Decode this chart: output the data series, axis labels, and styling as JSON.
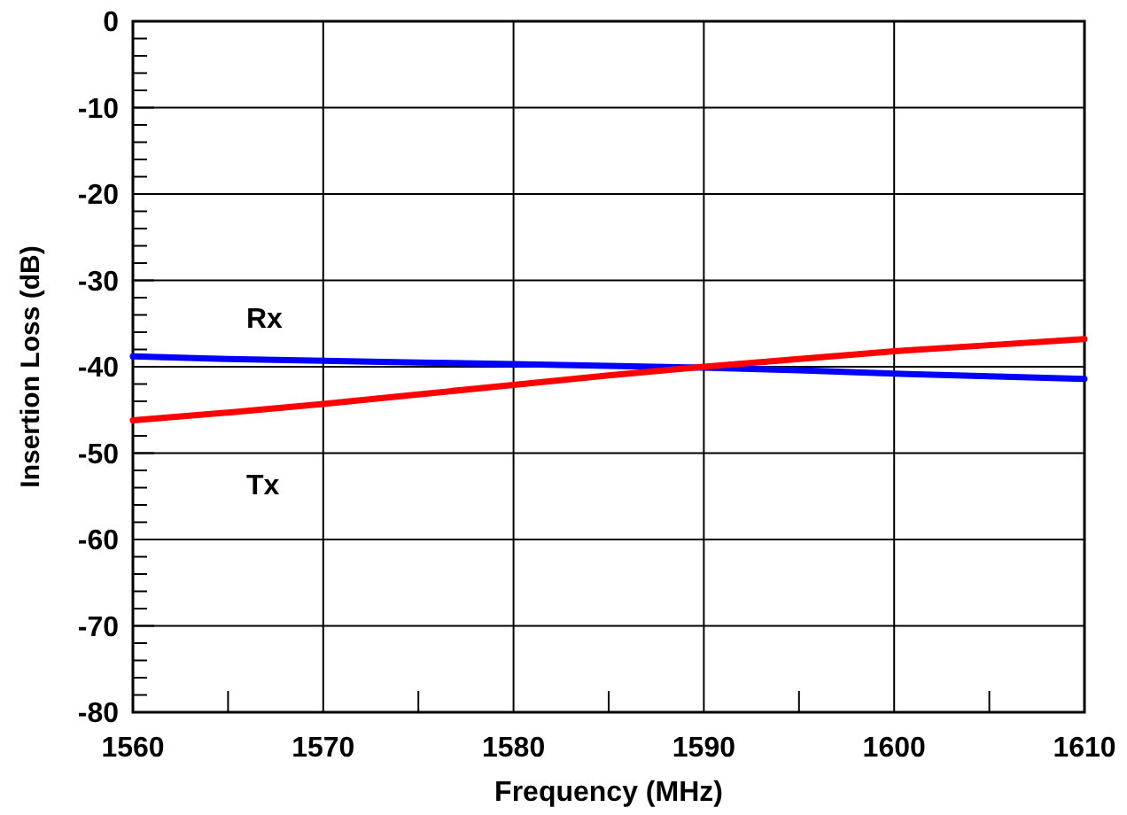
{
  "chart_data": {
    "type": "line",
    "xlabel": "Frequency (MHz)",
    "ylabel": "Insertion Loss (dB)",
    "x": [
      1560,
      1565,
      1570,
      1575,
      1580,
      1585,
      1590,
      1595,
      1600,
      1605,
      1610
    ],
    "series": [
      {
        "name": "Rx",
        "color": "#0000ff",
        "values": [
          -38.8,
          -39.1,
          -39.3,
          -39.5,
          -39.7,
          -39.9,
          -40.1,
          -40.4,
          -40.8,
          -41.1,
          -41.4
        ]
      },
      {
        "name": "Tx",
        "color": "#ff0000",
        "values": [
          -46.2,
          -45.3,
          -44.3,
          -43.2,
          -42.1,
          -41.0,
          -40.0,
          -39.1,
          -38.2,
          -37.5,
          -36.8
        ]
      }
    ],
    "xlim": [
      1560,
      1610
    ],
    "ylim": [
      -80,
      0
    ],
    "xticks": [
      1560,
      {
        "value": 1565,
        "label": null
      },
      1570,
      {
        "value": 1575,
        "label": null
      },
      1580,
      {
        "value": 1585,
        "label": null
      },
      1590,
      {
        "value": 1595,
        "label": null
      },
      1600,
      {
        "value": 1605,
        "label": null
      },
      1610
    ],
    "yticks": [
      -80,
      {
        "value": -78,
        "label": null
      },
      {
        "value": -76,
        "label": null
      },
      {
        "value": -74,
        "label": null
      },
      {
        "value": -72,
        "label": null
      },
      -70,
      {
        "value": -68,
        "label": null
      },
      {
        "value": -66,
        "label": null
      },
      {
        "value": -64,
        "label": null
      },
      {
        "value": -62,
        "label": null
      },
      -60,
      {
        "value": -58,
        "label": null
      },
      {
        "value": -56,
        "label": null
      },
      {
        "value": -54,
        "label": null
      },
      {
        "value": -52,
        "label": null
      },
      -50,
      {
        "value": -48,
        "label": null
      },
      {
        "value": -46,
        "label": null
      },
      {
        "value": -44,
        "label": null
      },
      {
        "value": -42,
        "label": null
      },
      -40,
      {
        "value": -38,
        "label": null
      },
      {
        "value": -36,
        "label": null
      },
      {
        "value": -34,
        "label": null
      },
      {
        "value": -32,
        "label": null
      },
      -30,
      {
        "value": -28,
        "label": null
      },
      {
        "value": -26,
        "label": null
      },
      {
        "value": -24,
        "label": null
      },
      {
        "value": -22,
        "label": null
      },
      -20,
      {
        "value": -18,
        "label": null
      },
      {
        "value": -16,
        "label": null
      },
      {
        "value": -14,
        "label": null
      },
      {
        "value": -12,
        "label": null
      },
      -10,
      {
        "value": -8,
        "label": null
      },
      {
        "value": -6,
        "label": null
      },
      {
        "value": -4,
        "label": null
      },
      {
        "value": -2,
        "label": null
      },
      0
    ],
    "grid": true,
    "line_style": "solid",
    "marker": "none"
  }
}
